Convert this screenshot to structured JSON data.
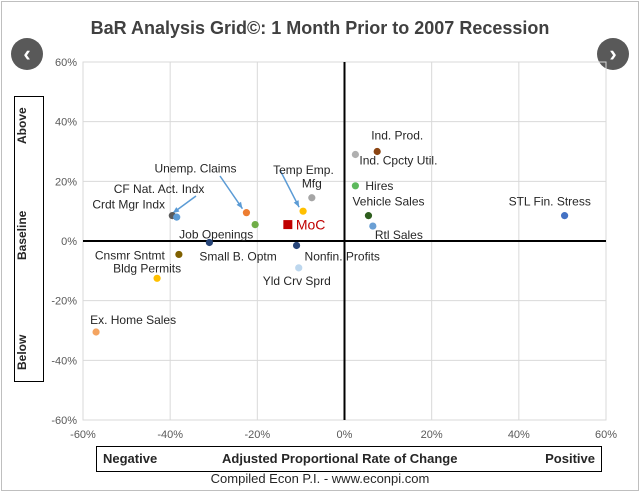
{
  "title": "BaR Analysis Grid©: 1 Month Prior to 2007 Recession",
  "nav": {
    "prev_icon": "‹",
    "next_icon": "›"
  },
  "y_axis_labels": {
    "top": "Above",
    "middle": "Baseline",
    "bottom": "Below"
  },
  "x_axis_labels": {
    "left": "Negative",
    "center": "Adjusted Proportional Rate of Change",
    "right": "Positive"
  },
  "footer": "Compiled Econ P.I. - www.econpi.com",
  "chart_data": {
    "type": "scatter",
    "xlim": [
      -60,
      60
    ],
    "ylim": [
      -60,
      60
    ],
    "x_ticks": [
      -60,
      -40,
      -20,
      0,
      20,
      40,
      60
    ],
    "y_ticks": [
      -60,
      -40,
      -20,
      0,
      20,
      40,
      60
    ],
    "tick_suffix": "%",
    "xlabel": "Adjusted Proportional Rate of Change",
    "ylabel": "",
    "points": [
      {
        "label": "Ind. Prod.",
        "x": 7.5,
        "y": 30,
        "color": "#8b4513"
      },
      {
        "label": "Ind. Cpcty Util.",
        "x": 2.5,
        "y": 29,
        "color": "#b0b0b0"
      },
      {
        "label": "Hires",
        "x": 2.5,
        "y": 18.5,
        "color": "#5cb85c"
      },
      {
        "label": "Vehicle Sales",
        "x": 5.5,
        "y": 8.5,
        "color": "#2e5e1e"
      },
      {
        "label": "Rtl Sales",
        "x": 6.5,
        "y": 5,
        "color": "#6a9fd4"
      },
      {
        "label": "STL Fin. Stress",
        "x": 50.5,
        "y": 8.5,
        "color": "#4472c4"
      },
      {
        "label": "Mfg",
        "x": -7.5,
        "y": 14.5,
        "color": "#a5a5a5"
      },
      {
        "label": "Temp Emp.",
        "x": -9.5,
        "y": 10,
        "color": "#ffc000"
      },
      {
        "label": "Unemp. Claims",
        "x": -22.5,
        "y": 9.5,
        "color": "#ed7d31"
      },
      {
        "label": "Job Openings",
        "x": -20.5,
        "y": 5.5,
        "color": "#70ad47"
      },
      {
        "label": "Crdt Mgr Indx",
        "x": -39.5,
        "y": 8.5,
        "color": "#5a5a5a"
      },
      {
        "label": "CF Nat. Act. Indx",
        "x": -38.5,
        "y": 8,
        "color": "#5b9bd5"
      },
      {
        "label": "Small B. Optm",
        "x": -31,
        "y": -0.5,
        "color": "#264478"
      },
      {
        "label": "Nonfin. Profits",
        "x": -11,
        "y": -1.5,
        "color": "#264478"
      },
      {
        "label": "Cnsmr Sntmt",
        "x": -38,
        "y": -4.5,
        "color": "#7f6000"
      },
      {
        "label": "Bldg Permits",
        "x": -43,
        "y": -12.5,
        "color": "#ffc000"
      },
      {
        "label": "Yld Crv Sprd",
        "x": -10.5,
        "y": -9,
        "color": "#bdd7ee"
      },
      {
        "label": "Ex. Home Sales",
        "x": -57,
        "y": -30.5,
        "color": "#f4a460"
      }
    ],
    "highlight": {
      "label": "MoC",
      "x": -13,
      "y": 5.5,
      "color": "#c00000"
    }
  }
}
